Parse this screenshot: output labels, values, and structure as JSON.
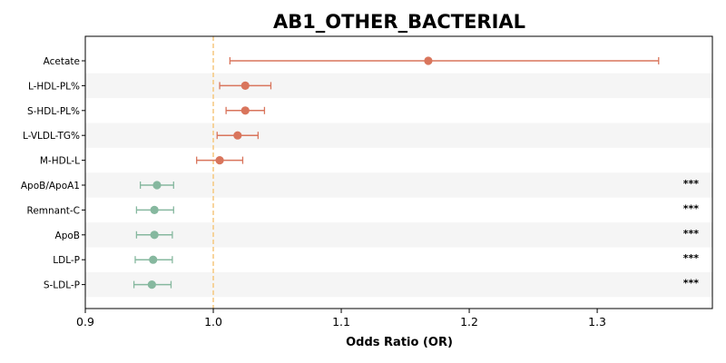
{
  "chart_data": {
    "type": "forest",
    "title": "AB1_OTHER_BACTERIAL",
    "xlabel": "Odds Ratio (OR)",
    "ylabel": "",
    "xlim": [
      0.9,
      1.39
    ],
    "xticks": [
      0.9,
      1.0,
      1.1,
      1.2,
      1.3
    ],
    "xtick_labels": [
      "0.9",
      "1.0",
      "1.1",
      "1.2",
      "1.3"
    ],
    "reference_line": 1.0,
    "colors": {
      "positive": "#d9755c",
      "negative": "#86b89f",
      "reference": "#f5c77e",
      "band": "#f5f5f5"
    },
    "rows": [
      {
        "label": "Acetate",
        "or": 1.168,
        "lo": 1.013,
        "hi": 1.348,
        "direction": "positive",
        "sig": ""
      },
      {
        "label": "L-HDL-PL%",
        "or": 1.025,
        "lo": 1.005,
        "hi": 1.045,
        "direction": "positive",
        "sig": ""
      },
      {
        "label": "S-HDL-PL%",
        "or": 1.025,
        "lo": 1.01,
        "hi": 1.04,
        "direction": "positive",
        "sig": ""
      },
      {
        "label": "L-VLDL-TG%",
        "or": 1.019,
        "lo": 1.003,
        "hi": 1.035,
        "direction": "positive",
        "sig": ""
      },
      {
        "label": "M-HDL-L",
        "or": 1.005,
        "lo": 0.987,
        "hi": 1.023,
        "direction": "positive",
        "sig": ""
      },
      {
        "label": "ApoB/ApoA1",
        "or": 0.956,
        "lo": 0.943,
        "hi": 0.969,
        "direction": "negative",
        "sig": "***"
      },
      {
        "label": "Remnant-C",
        "or": 0.954,
        "lo": 0.94,
        "hi": 0.969,
        "direction": "negative",
        "sig": "***"
      },
      {
        "label": "ApoB",
        "or": 0.954,
        "lo": 0.94,
        "hi": 0.968,
        "direction": "negative",
        "sig": "***"
      },
      {
        "label": "LDL-P",
        "or": 0.953,
        "lo": 0.939,
        "hi": 0.968,
        "direction": "negative",
        "sig": "***"
      },
      {
        "label": "S-LDL-P",
        "or": 0.952,
        "lo": 0.938,
        "hi": 0.967,
        "direction": "negative",
        "sig": "***"
      }
    ]
  }
}
